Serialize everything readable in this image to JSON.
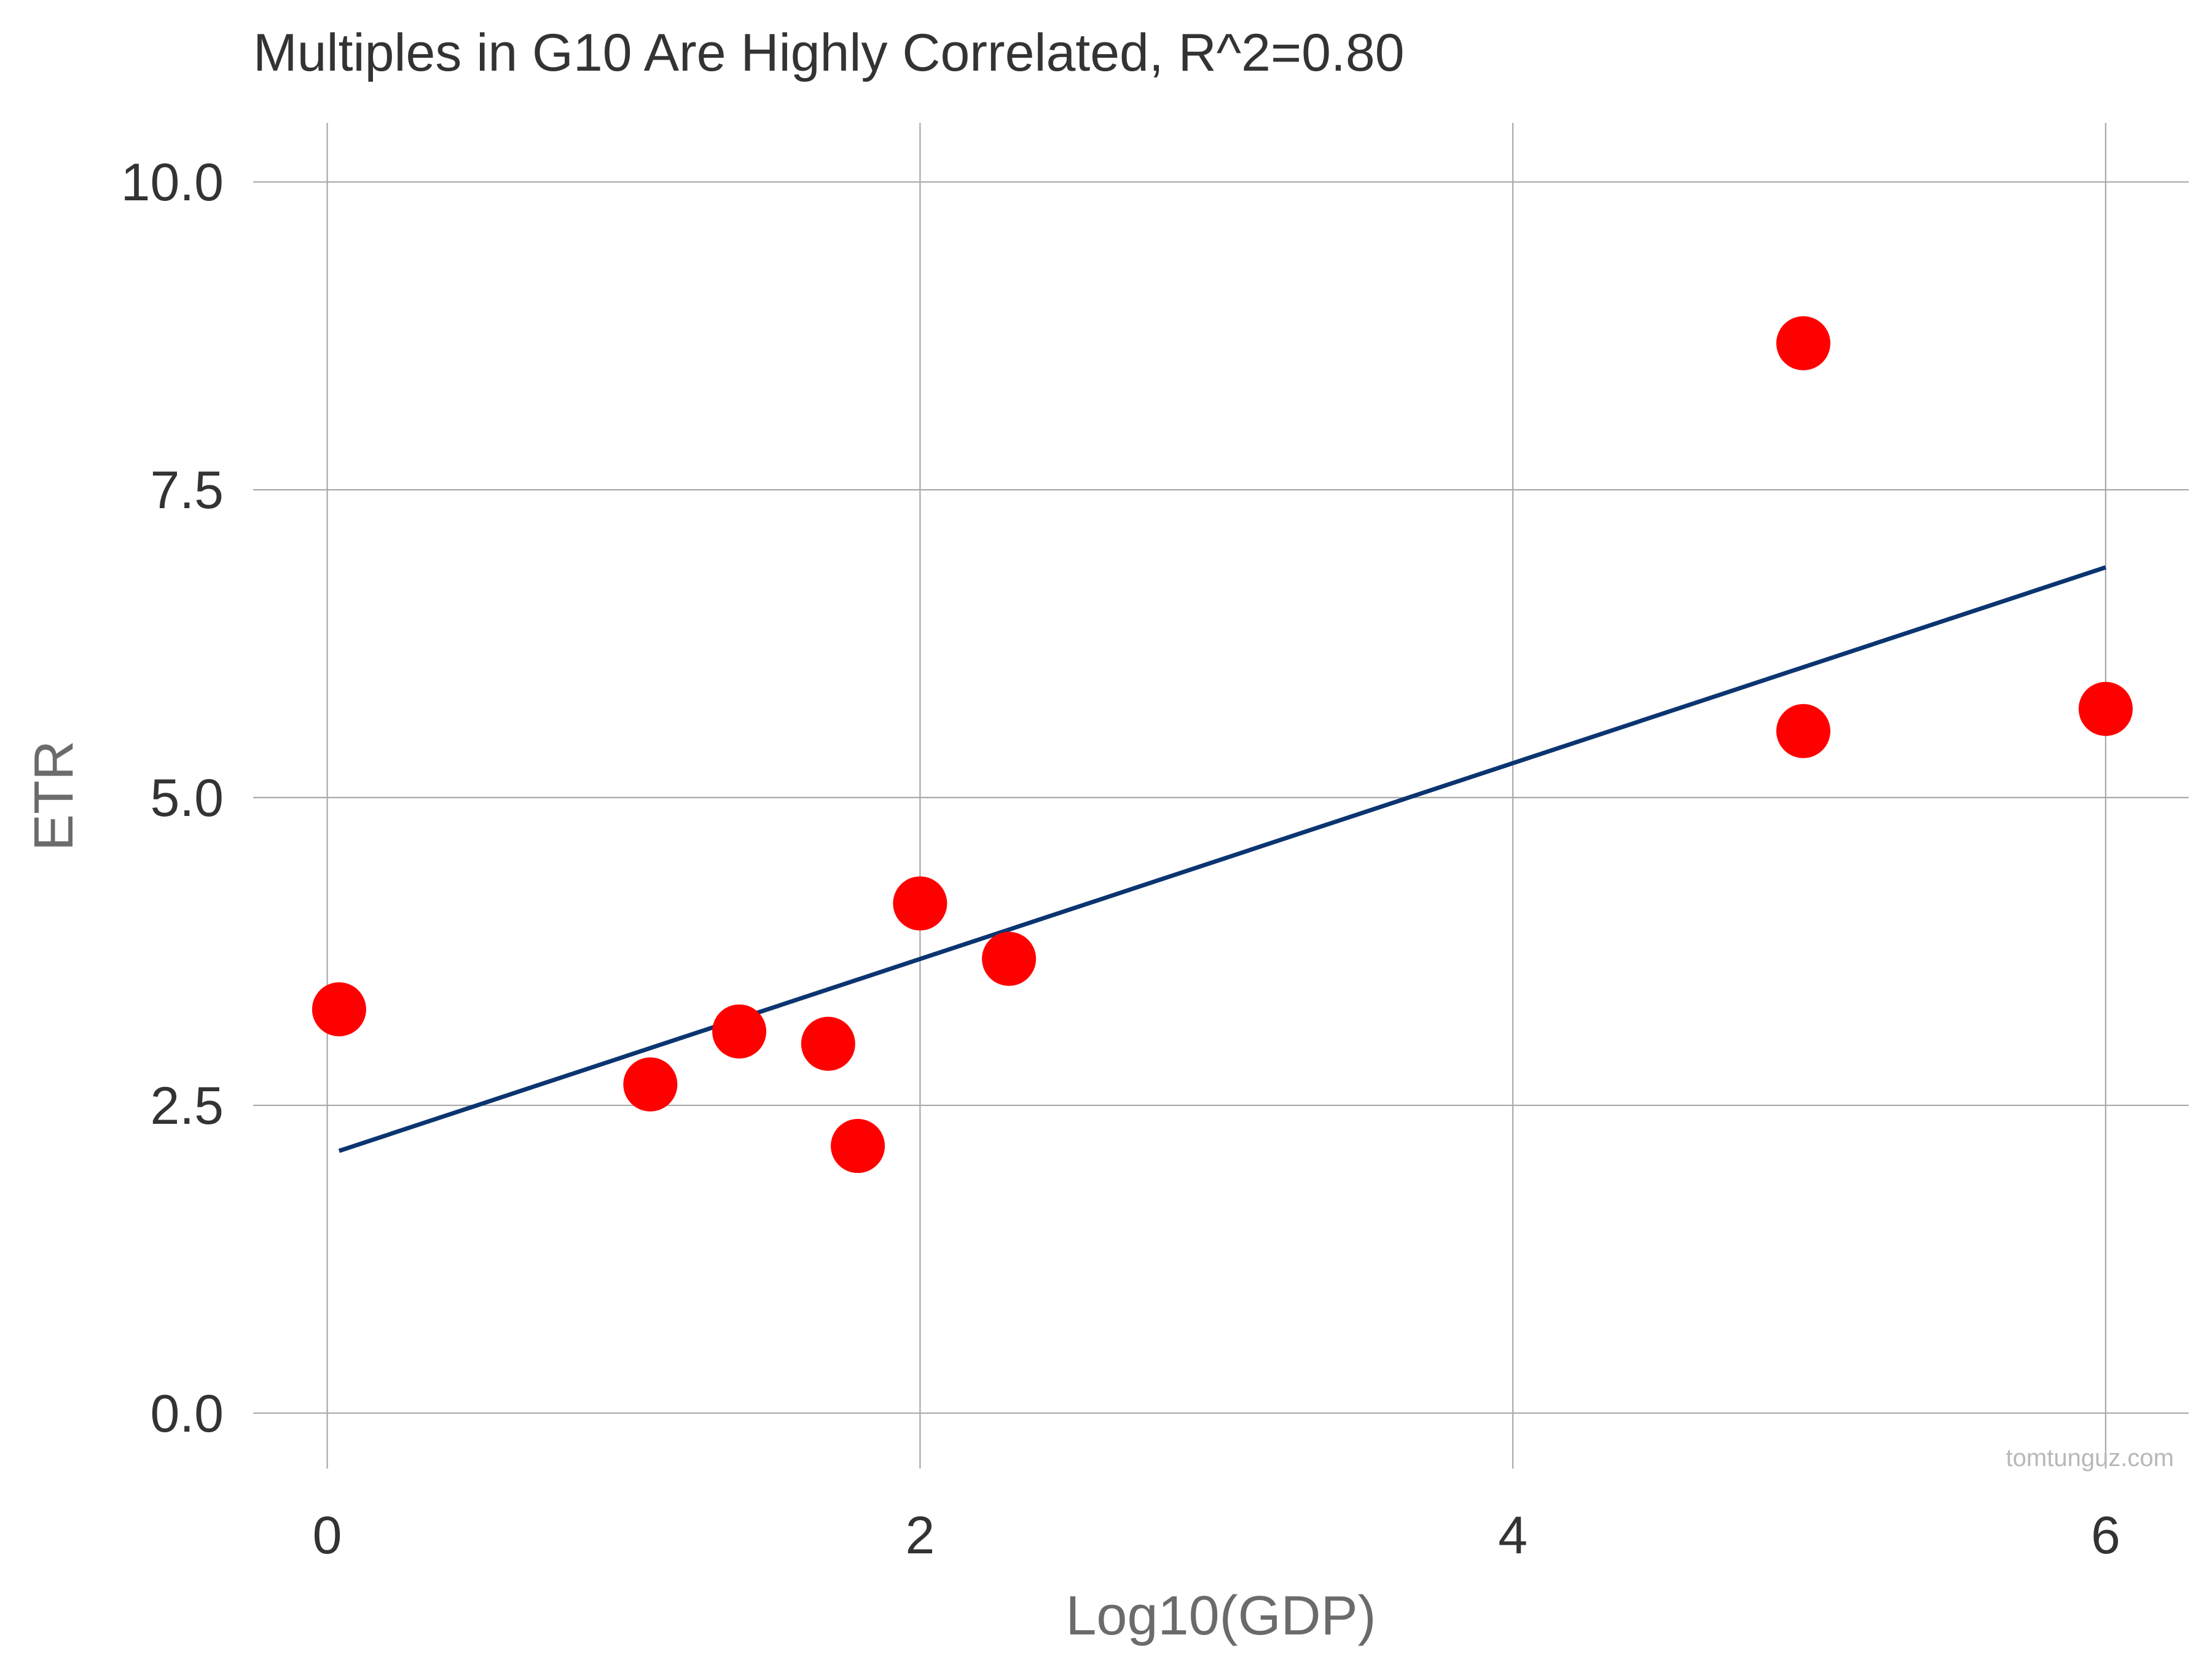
{
  "chart_data": {
    "type": "scatter",
    "title": "Multiples in G10 Are Highly Correlated, R^2=0.80",
    "xlabel": "Log10(GDP)",
    "ylabel": "ETR",
    "x_ticks": [
      "0",
      "2",
      "4",
      "6"
    ],
    "x_tick_values": [
      0,
      2,
      4,
      6
    ],
    "y_ticks": [
      "0.0",
      "2.5",
      "5.0",
      "7.5",
      "10.0"
    ],
    "y_tick_values": [
      0,
      2.5,
      5,
      7.5,
      10
    ],
    "xlim": [
      -0.25,
      6.28
    ],
    "ylim": [
      -0.45,
      10.48
    ],
    "grid": true,
    "marker_color": "#ff0000",
    "trend_color": "#0b3570",
    "points": [
      {
        "x": 0.04,
        "y": 3.28
      },
      {
        "x": 1.09,
        "y": 2.67
      },
      {
        "x": 1.39,
        "y": 3.1
      },
      {
        "x": 1.69,
        "y": 3.0
      },
      {
        "x": 1.79,
        "y": 2.17
      },
      {
        "x": 2.0,
        "y": 4.14
      },
      {
        "x": 2.3,
        "y": 3.69
      },
      {
        "x": 4.98,
        "y": 8.69
      },
      {
        "x": 4.98,
        "y": 5.54
      },
      {
        "x": 6.0,
        "y": 5.72
      }
    ],
    "trendline": [
      {
        "x": 0.04,
        "y": 2.13
      },
      {
        "x": 6.0,
        "y": 6.87
      }
    ]
  },
  "watermark": "tomtunguz.com"
}
